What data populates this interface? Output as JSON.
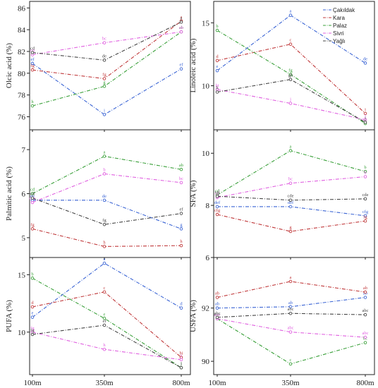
{
  "colors": {
    "Çakıldak": "#3a64d4",
    "Kara": "#c0393b",
    "Palaz": "#3aa03a",
    "Sivri": "#e060e0",
    "Yağlı": "#444444"
  },
  "legend": [
    "Çakıldak",
    "Kara",
    "Palaz",
    "Sivri",
    "Yağlı"
  ],
  "chart_data": [
    {
      "type": "line",
      "ylabel": "Olcic acid (%)",
      "ylim": [
        74.8,
        86.6
      ],
      "yticks": [
        76,
        78,
        80,
        82,
        84,
        86
      ],
      "yticklabels": [
        "76",
        "78",
        "80",
        "82",
        "84",
        "86"
      ],
      "xticklabels": [
        "",
        "",
        ""
      ],
      "x": [
        "100m",
        "350m",
        "800m"
      ],
      "series": [
        {
          "name": "Çakıldak",
          "values": [
            80.9,
            76.2,
            80.4
          ],
          "letters": [
            "ef",
            "i",
            "ef"
          ]
        },
        {
          "name": "Kara",
          "values": [
            80.3,
            79.5,
            84.8
          ],
          "letters": [
            "fg",
            "fg",
            "a"
          ]
        },
        {
          "name": "Palaz",
          "values": [
            77.0,
            78.8,
            83.8
          ],
          "letters": [
            "h",
            "g",
            "ab"
          ]
        },
        {
          "name": "Sivri",
          "values": [
            81.7,
            82.8,
            83.8
          ],
          "letters": [
            "cd",
            "bc",
            "ab"
          ]
        },
        {
          "name": "Yağlı",
          "values": [
            81.9,
            81.2,
            84.7
          ],
          "letters": [
            "cd",
            "de",
            "a"
          ]
        }
      ]
    },
    {
      "type": "line",
      "ylabel": "Linoleic acid (%)",
      "ylim": [
        6.5,
        16.7
      ],
      "yticks": [
        10,
        15
      ],
      "yticklabels": [
        "10",
        "15"
      ],
      "xticklabels": [
        "",
        "",
        ""
      ],
      "x": [
        "100m",
        "350m",
        "800m"
      ],
      "series": [
        {
          "name": "Çakıldak",
          "values": [
            11.2,
            15.6,
            11.8
          ],
          "letters": [
            "e",
            "a",
            "de"
          ]
        },
        {
          "name": "Kara",
          "values": [
            12.0,
            13.3,
            7.8
          ],
          "letters": [
            "d",
            "c",
            "i"
          ]
        },
        {
          "name": "Palaz",
          "values": [
            14.4,
            10.9,
            7.0
          ],
          "letters": [
            "b",
            "fg",
            "j"
          ]
        },
        {
          "name": "Sivri",
          "values": [
            9.7,
            8.6,
            7.3
          ],
          "letters": [
            "hi",
            "j",
            "j"
          ]
        },
        {
          "name": "Yağlı",
          "values": [
            9.5,
            10.5,
            7.1
          ],
          "letters": [
            "h",
            "gh",
            "j"
          ]
        }
      ]
    },
    {
      "type": "line",
      "ylabel": "Palmitic acid (%)",
      "ylim": [
        4.55,
        7.45
      ],
      "yticks": [
        5,
        6,
        7
      ],
      "yticklabels": [
        "5",
        "6",
        "7"
      ],
      "xticklabels": [
        "",
        "",
        ""
      ],
      "x": [
        "100m",
        "350m",
        "800m"
      ],
      "series": [
        {
          "name": "Çakıldak",
          "values": [
            5.85,
            5.85,
            5.2
          ],
          "letters": [
            "de",
            "de",
            "g"
          ]
        },
        {
          "name": "Kara",
          "values": [
            5.2,
            4.8,
            4.82
          ],
          "letters": [
            "fg",
            "h",
            "h"
          ]
        },
        {
          "name": "Palaz",
          "values": [
            6.0,
            6.85,
            6.55
          ],
          "letters": [
            "cd",
            "a",
            "ab"
          ]
        },
        {
          "name": "Sivri",
          "values": [
            5.8,
            6.45,
            6.25
          ],
          "letters": [
            "cde",
            "b",
            "bc"
          ]
        },
        {
          "name": "Yağlı",
          "values": [
            5.9,
            5.3,
            5.55
          ],
          "letters": [
            "cd",
            "fg",
            "ef"
          ]
        }
      ]
    },
    {
      "type": "line",
      "ylabel": "SFA (%)",
      "ylim": [
        6.0,
        10.9
      ],
      "yticks": [
        6,
        8,
        10
      ],
      "yticklabels": [
        "6",
        "8",
        "10"
      ],
      "xticklabels": [
        "",
        "",
        ""
      ],
      "x": [
        "100m",
        "350m",
        "800m"
      ],
      "series": [
        {
          "name": "Çakıldak",
          "values": [
            7.95,
            7.95,
            7.6
          ],
          "letters": [
            "def",
            "def",
            "cfg"
          ]
        },
        {
          "name": "Kara",
          "values": [
            7.65,
            7.0,
            7.4
          ],
          "letters": [
            "cfg",
            "g",
            "fg"
          ]
        },
        {
          "name": "Palaz",
          "values": [
            8.4,
            10.1,
            9.3
          ],
          "letters": [
            "cd",
            "a",
            "b"
          ]
        },
        {
          "name": "Sivri",
          "values": [
            8.3,
            8.85,
            9.1
          ],
          "letters": [
            "cd",
            "bc",
            "b"
          ]
        },
        {
          "name": "Yağlı",
          "values": [
            8.35,
            8.2,
            8.25
          ],
          "letters": [
            "cd",
            "cde",
            "cde"
          ]
        }
      ]
    },
    {
      "type": "line",
      "ylabel": "PUFA (%)",
      "ylim": [
        6.3,
        16.5
      ],
      "yticks": [
        10,
        15
      ],
      "yticklabels": [
        "10",
        "15"
      ],
      "xticklabels": [
        "100m",
        "350m",
        "800m"
      ],
      "x": [
        "100m",
        "350m",
        "800m"
      ],
      "series": [
        {
          "name": "Çakıldak",
          "values": [
            11.3,
            16.0,
            12.1
          ],
          "letters": [
            "e",
            "a",
            "d"
          ]
        },
        {
          "name": "Kara",
          "values": [
            12.2,
            13.5,
            7.8
          ],
          "letters": [
            "d",
            "c",
            "hi"
          ]
        },
        {
          "name": "Palaz",
          "values": [
            14.7,
            11.2,
            6.9
          ],
          "letters": [
            "b",
            "e",
            "j"
          ]
        },
        {
          "name": "Sivri",
          "values": [
            10.0,
            8.5,
            7.6
          ],
          "letters": [
            "fg",
            "h",
            "i"
          ]
        },
        {
          "name": "Yağlı",
          "values": [
            9.8,
            10.6,
            6.9
          ],
          "letters": [
            "fg",
            "ef",
            "j"
          ]
        }
      ]
    },
    {
      "type": "line",
      "ylabel": "USFA (%)",
      "ylim": [
        89.5,
        93.9
      ],
      "yticks": [
        90,
        92
      ],
      "yticklabels": [
        "90",
        "92"
      ],
      "xticklabels": [
        "100m",
        "350m",
        "800m"
      ],
      "x": [
        "100m",
        "350m",
        "800m"
      ],
      "series": [
        {
          "name": "Çakıldak",
          "values": [
            92.0,
            92.05,
            92.4
          ],
          "letters": [
            "ab",
            "ab",
            "ab"
          ]
        },
        {
          "name": "Kara",
          "values": [
            92.4,
            93.0,
            92.6
          ],
          "letters": [
            "ab",
            "a",
            "ab"
          ]
        },
        {
          "name": "Palaz",
          "values": [
            91.6,
            89.9,
            90.7
          ],
          "letters": [
            "abc",
            "c",
            "bc"
          ]
        },
        {
          "name": "Sivri",
          "values": [
            91.6,
            91.1,
            90.9
          ],
          "letters": [
            "abc",
            "abc",
            "abc"
          ]
        },
        {
          "name": "Yağlı",
          "values": [
            91.65,
            91.8,
            91.75
          ],
          "letters": [
            "abc",
            "abc",
            "abc"
          ]
        }
      ]
    }
  ]
}
